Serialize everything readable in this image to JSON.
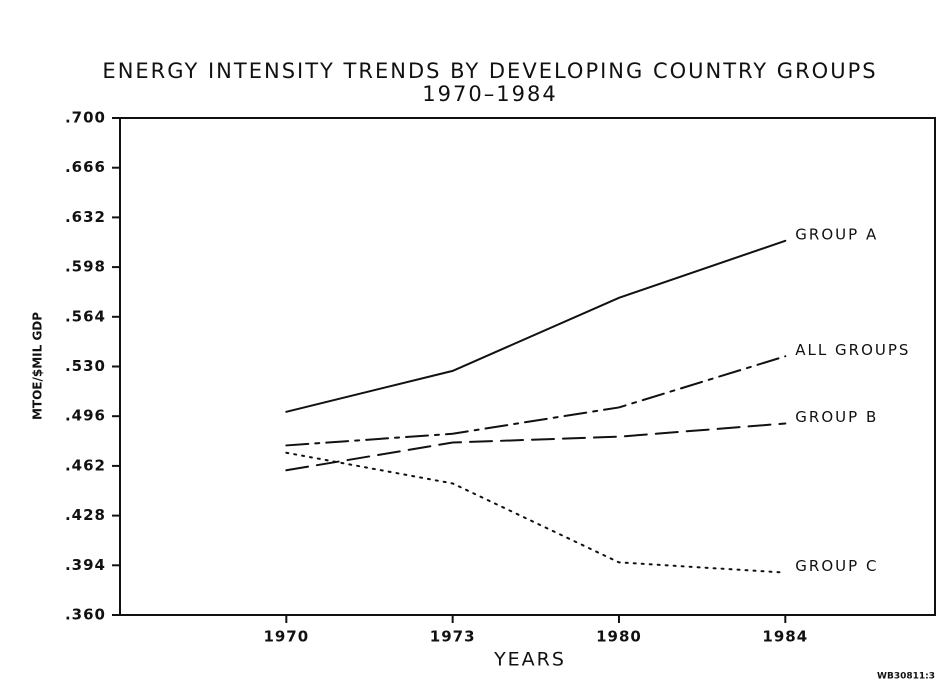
{
  "chart_data": {
    "type": "line",
    "title": "ENERGY INTENSITY TRENDS BY DEVELOPING COUNTRY GROUPS",
    "subtitle": "1970–1984",
    "x_label": "YEARS",
    "y_label": "MTOE/$MIL GDP",
    "note": "WB30811:3",
    "categories": [
      "1970",
      "1973",
      "1980",
      "1984"
    ],
    "series": [
      {
        "name": "GROUP A",
        "color": "#111111",
        "style": "solid",
        "values": [
          0.499,
          0.527,
          0.577,
          0.616
        ]
      },
      {
        "name": "ALL GROUPS",
        "color": "#111111",
        "style": "dashdot",
        "values": [
          0.476,
          0.484,
          0.502,
          0.537
        ]
      },
      {
        "name": "GROUP B",
        "color": "#111111",
        "style": "dashed",
        "values": [
          0.459,
          0.478,
          0.482,
          0.491
        ]
      },
      {
        "name": "GROUP C",
        "color": "#111111",
        "style": "dotted",
        "values": [
          0.471,
          0.45,
          0.396,
          0.389
        ]
      }
    ],
    "ylim": [
      0.36,
      0.7
    ],
    "yticks": [
      {
        "value": 0.7,
        "label": ".700"
      },
      {
        "value": 0.666,
        "label": ".666"
      },
      {
        "value": 0.632,
        "label": ".632"
      },
      {
        "value": 0.598,
        "label": ".598"
      },
      {
        "value": 0.564,
        "label": ".564"
      },
      {
        "value": 0.53,
        "label": ".530"
      },
      {
        "value": 0.496,
        "label": ".496"
      },
      {
        "value": 0.462,
        "label": ".462"
      },
      {
        "value": 0.428,
        "label": ".428"
      },
      {
        "value": 0.394,
        "label": ".394"
      },
      {
        "value": 0.36,
        "label": ".360"
      }
    ],
    "grid": false
  }
}
